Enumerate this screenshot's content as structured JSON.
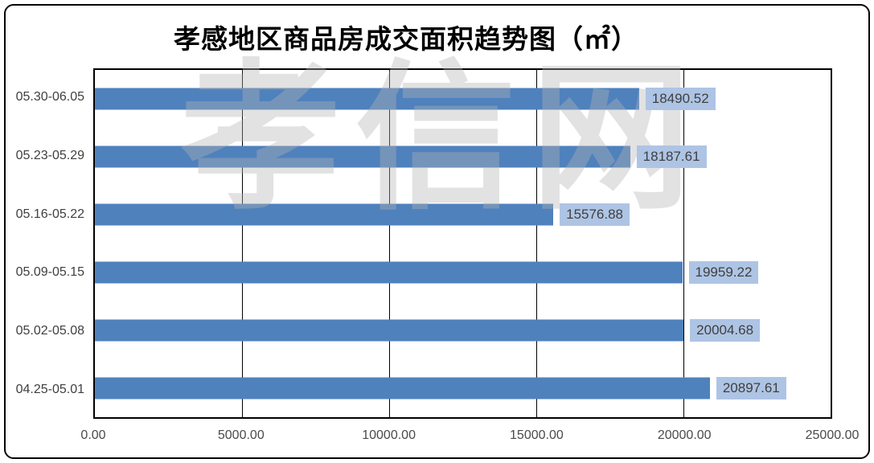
{
  "chart": {
    "title": "孝感地区商品房成交面积趋势图（㎡）",
    "watermark": "孝信网"
  },
  "chart_data": {
    "type": "bar",
    "orientation": "horizontal",
    "title": "孝感地区商品房成交面积趋势图（㎡）",
    "categories": [
      "05.30-06.05",
      "05.23-05.29",
      "05.16-05.22",
      "05.09-05.15",
      "05.02-05.08",
      "04.25-05.01"
    ],
    "values": [
      18490.52,
      18187.61,
      15576.88,
      19959.22,
      20004.68,
      20897.61
    ],
    "value_labels": [
      "18490.52",
      "18187.61",
      "15576.88",
      "19959.22",
      "20004.68",
      "20897.61"
    ],
    "xlabel": "",
    "ylabel": "",
    "xlim": [
      0,
      25000
    ],
    "x_ticks": [
      "0.00",
      "5000.00",
      "10000.00",
      "15000.00",
      "20000.00",
      "25000.00"
    ],
    "x_tick_values": [
      0,
      5000,
      10000,
      15000,
      20000,
      25000
    ],
    "grid": true,
    "legend": false,
    "colors": {
      "bar": "#4f81bd",
      "value_label_fill": "#aec4e4",
      "value_label_text": "#3f3f3f",
      "axis_text": "#3f3f3f",
      "gridline": "#000000",
      "plot_border": "#000000",
      "frame_border": "#000000",
      "background": "#ffffff"
    }
  }
}
